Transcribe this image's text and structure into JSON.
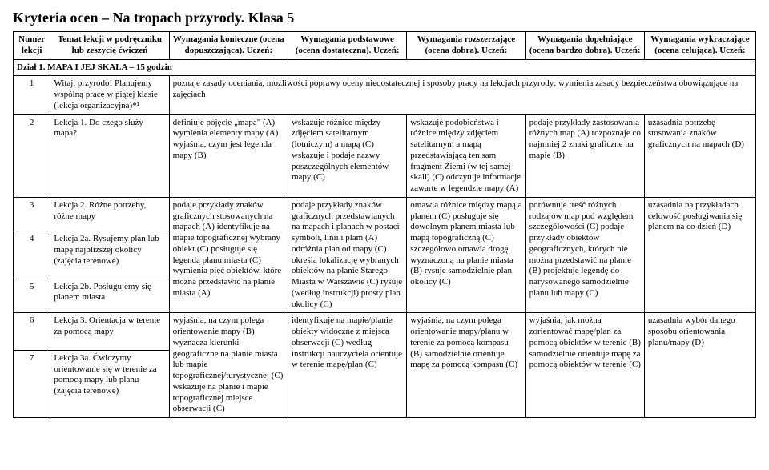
{
  "title": "Kryteria ocen – Na tropach przyrody. Klasa 5",
  "headers": {
    "col0": "Numer lekcji",
    "col1": "Temat lekcji w podręczniku lub zeszycie ćwiczeń",
    "col2": "Wymagania konieczne (ocena dopuszczająca). Uczeń:",
    "col3": "Wymagania podstawowe (ocena dostateczna). Uczeń:",
    "col4": "Wymagania rozszerzające (ocena dobra). Uczeń:",
    "col5": "Wymagania dopełniające (ocena bardzo dobra). Uczeń:",
    "col6": "Wymagania wykraczające (ocena celująca). Uczeń:"
  },
  "section": "Dział 1. MAPA I JEJ SKALA – 15 godzin",
  "rows": {
    "r1": {
      "num": "1",
      "topic": "Witaj, przyrodo! Planujemy wspólną pracę w piątej klasie (lekcja organizacyjna)*¹",
      "merged": "poznaje zasady oceniania, możliwości poprawy oceny niedostatecznej i sposoby pracy na lekcjach przyrody; wymienia zasady bezpieczeństwa obowiązujące na zajęciach"
    },
    "r2": {
      "num": "2",
      "topic": "Lekcja 1. Do czego służy mapa?",
      "c2": "definiuje pojęcie „mapa\" (A) wymienia elementy mapy (A) wyjaśnia, czym jest legenda mapy (B)",
      "c3": "wskazuje różnice między zdjęciem satelitarnym (lotniczym) a mapą (C) wskazuje i podaje nazwy poszczególnych elementów mapy (C)",
      "c4": "wskazuje podobieństwa i różnice między zdjęciem satelitarnym a mapą przedstawiającą ten sam fragment Ziemi (w tej samej skali) (C) odczytuje informacje zawarte w legendzie mapy (A)",
      "c5": "podaje przykłady zastosowania różnych map (A) rozpoznaje co najmniej 2 znaki graficzne na mapie (B)",
      "c6": "uzasadnia potrzebę stosowania znaków graficznych na mapach (D)"
    },
    "r3": {
      "num": "3",
      "topic": "Lekcja 2. Różne potrzeby, różne mapy",
      "c2": "podaje przykłady znaków graficznych stosowanych na mapach (A) identyfikuje na mapie topograficznej wybrany obiekt (C) posługuje się legendą planu miasta (C) wymienia pięć obiektów, które można przedstawić na planie miasta (A)",
      "c3": "podaje przykłady znaków graficznych przedstawianych na mapach i planach w postaci symboli, linii i plam (A) odróżnia plan od mapy (C) określa lokalizację wybranych obiektów na planie Starego Miasta w Warszawie (C) rysuje (według instrukcji) prosty plan okolicy (C)",
      "c4": "omawia różnice między mapą a planem (C) posługuje się dowolnym planem miasta lub mapą topograficzną (C) szczegółowo omawia drogę wyznaczoną na planie miasta (B) rysuje samodzielnie plan okolicy (C)",
      "c5": "porównuje treść różnych rodzajów map pod względem szczegółowości (C) podaje przykłady obiektów geograficznych, których nie można przedstawić na planie (B) projektuje legendę do narysowanego samodzielnie planu lub mapy (C)",
      "c6": "uzasadnia na przykładach celowość posługiwania się planem na co dzień (D)"
    },
    "r4": {
      "num": "4",
      "topic": "Lekcja 2a. Rysujemy plan lub mapę najbliższej okolicy (zajęcia terenowe)"
    },
    "r5": {
      "num": "5",
      "topic": "Lekcja 2b. Posługujemy się planem miasta"
    },
    "r6": {
      "num": "6",
      "topic": "Lekcja 3. Orientacja w terenie za pomocą mapy",
      "c2": "wyjaśnia, na czym polega orientowanie mapy (B) wyznacza kierunki geograficzne na planie miasta lub mapie topograficznej/turystycznej (C) wskazuje na planie i mapie topograficznej miejsce obserwacji (C)",
      "c3": "identyfikuje na mapie/planie obiekty widoczne z miejsca obserwacji (C) według instrukcji nauczyciela orientuje w terenie mapę/plan (C)",
      "c4": "wyjaśnia, na czym polega orientowanie mapy/planu w terenie za pomocą kompasu (B) samodzielnie orientuje mapę za pomocą kompasu (C)",
      "c5": "wyjaśnia, jak można zorientować mapę/plan za pomocą obiektów w terenie (B) samodzielnie orientuje mapę za pomocą obiektów w terenie (C)",
      "c6": "uzasadnia wybór danego sposobu orientowania planu/mapy (D)"
    },
    "r7": {
      "num": "7",
      "topic": "Lekcja 3a. Ćwiczymy orientowanie się w terenie za pomocą mapy lub planu (zajęcia terenowe)"
    }
  }
}
